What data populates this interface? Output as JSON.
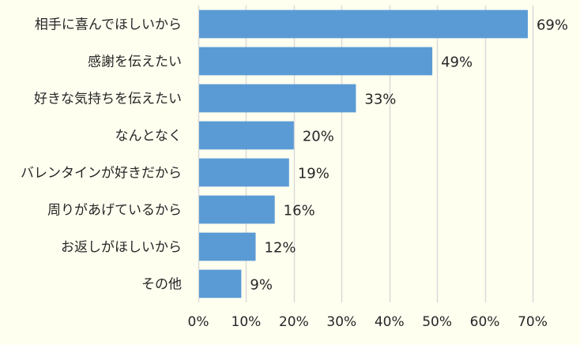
{
  "chart_data": {
    "type": "bar",
    "orientation": "horizontal",
    "categories": [
      "相手に喜んでほしいから",
      "感謝を伝えたい",
      "好きな気持ちを伝えたい",
      "なんとなく",
      "バレンタインが好きだから",
      "周りがあげているから",
      "お返しがほしいから",
      "その他"
    ],
    "values": [
      69,
      49,
      33,
      20,
      19,
      16,
      12,
      9
    ],
    "value_labels": [
      "69%",
      "49%",
      "33%",
      "20%",
      "19%",
      "16%",
      "12%",
      "9%"
    ],
    "xlim": [
      0,
      70
    ],
    "x_ticks": [
      "0%",
      "10%",
      "20%",
      "30%",
      "40%",
      "50%",
      "60%",
      "70%"
    ],
    "grid": "vertical",
    "legend": "none",
    "bar_color": "#5B9BD5",
    "grid_color": "#D9D9D9",
    "background_color": "#FFFFF0",
    "text_color": "#262626"
  }
}
